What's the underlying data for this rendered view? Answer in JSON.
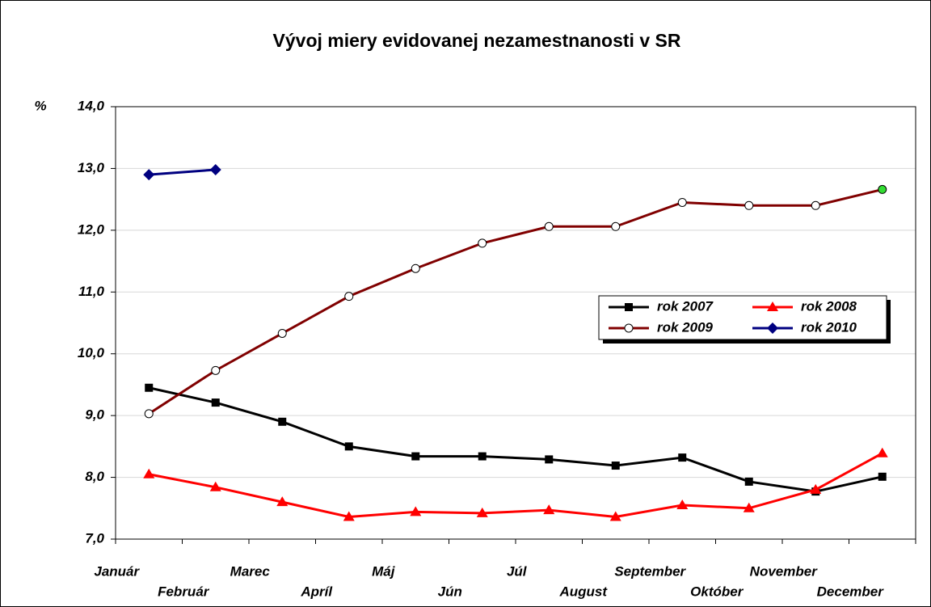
{
  "chart_data": {
    "type": "line",
    "title": "Vývoj miery evidovanej nezamestnanosti v SR",
    "y_label": "%",
    "categories": [
      "Január",
      "Február",
      "Marec",
      "Apríl",
      "Máj",
      "Jún",
      "Júl",
      "August",
      "September",
      "Október",
      "November",
      "December"
    ],
    "ylim": [
      7,
      14
    ],
    "yticks": [
      {
        "value": 7,
        "label": "7,0"
      },
      {
        "value": 8,
        "label": "8,0"
      },
      {
        "value": 9,
        "label": "9,0"
      },
      {
        "value": 10,
        "label": "10,0"
      },
      {
        "value": 11,
        "label": "11,0"
      },
      {
        "value": 12,
        "label": "12,0"
      },
      {
        "value": 13,
        "label": "13,0"
      },
      {
        "value": 14,
        "label": "14,0"
      }
    ],
    "grid": true,
    "legend": "right",
    "series": [
      {
        "name": "rok 2007",
        "color": "#000000",
        "marker": "square",
        "values": [
          9.45,
          9.21,
          8.9,
          8.5,
          8.34,
          8.34,
          8.29,
          8.19,
          8.32,
          7.93,
          7.77,
          8.01
        ]
      },
      {
        "name": "rok 2008",
        "color": "#ff0000",
        "marker": "triangle",
        "values": [
          8.05,
          7.84,
          7.6,
          7.36,
          7.44,
          7.42,
          7.47,
          7.36,
          7.55,
          7.5,
          7.8,
          8.39
        ]
      },
      {
        "name": "rok 2009",
        "color": "#800000",
        "marker": "circle",
        "last_marker_color": "#33dd33",
        "values": [
          9.03,
          9.73,
          10.33,
          10.93,
          11.38,
          11.79,
          12.06,
          12.06,
          12.45,
          12.4,
          12.4,
          12.66
        ]
      },
      {
        "name": "rok 2010",
        "color": "#000080",
        "marker": "diamond",
        "values": [
          12.9,
          12.98,
          null,
          null,
          null,
          null,
          null,
          null,
          null,
          null,
          null,
          null
        ]
      }
    ]
  }
}
